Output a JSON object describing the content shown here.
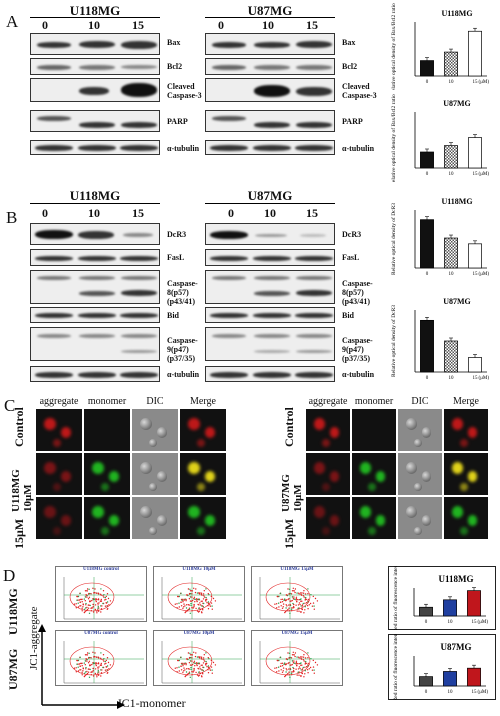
{
  "panelA": {
    "letter": "A",
    "u118_title": "U118MG",
    "u87_title": "U87MG",
    "conc": [
      "0",
      "10",
      "15"
    ],
    "labels": [
      "Bax",
      "Bcl2",
      "Cleaved Caspase-3",
      "PARP",
      "α-tubulin"
    ],
    "chart_u118_title": "U118MG",
    "chart_u87_title": "U87MG",
    "chart_ylabel": "Relative optical density of Bax/Bcl2 ratio",
    "unit": "(μM)"
  },
  "panelB": {
    "letter": "B",
    "u118_title": "U118MG",
    "u87_title": "U87MG",
    "conc": [
      "0",
      "10",
      "15"
    ],
    "labels": [
      "DcR3",
      "FasL",
      "Caspase-8(p57) (p43/41)",
      "Bid",
      "Caspase-9(p47) (p37/35)",
      "α-tubulin"
    ],
    "chart_u118_title": "U118MG",
    "chart_u87_title": "U87MG",
    "chart_ylabel": "Relative optical density of DcR3",
    "unit": "(μM)"
  },
  "panelC": {
    "letter": "C",
    "headers": [
      "aggregate",
      "monomer",
      "DIC",
      "Merge"
    ],
    "rows_left": [
      "Control",
      "U118MG 10μM",
      "15μM"
    ],
    "rows_right": [
      "Control",
      "U87MG 10μM",
      "15μM"
    ]
  },
  "panelD": {
    "letter": "D",
    "row_labels": [
      "U118MG",
      "U87MG"
    ],
    "y_axis_label": "JC1-aggregate",
    "x_axis_label": "JC1-monomer",
    "flow_titles": [
      "U118MG control",
      "U118MG 10μM",
      "U118MG 15μM",
      "U87MG control",
      "U87MG 10μM",
      "U87MG 15μM"
    ],
    "chart_u118_title": "U118MG",
    "chart_u87_title": "U87MG",
    "chart_ylabel": "Green/Red ratio of fluorescence intensity",
    "unit": "(μM)"
  },
  "colors": {
    "red_fluor": "#e0201c",
    "green_fluor": "#22c522",
    "bar_blue": "#1f3fa0",
    "bar_red": "#c0161c"
  },
  "chart_data": [
    {
      "type": "bar",
      "title": "U118MG",
      "categories": [
        "0",
        "10",
        "15"
      ],
      "values": [
        1.0,
        1.55,
        2.9
      ],
      "ylabel": "Relative optical density of Bax/Bcl2 ratio",
      "ylim": [
        0,
        3.5
      ]
    },
    {
      "type": "bar",
      "title": "U87MG",
      "categories": [
        "0",
        "10",
        "15"
      ],
      "values": [
        1.0,
        1.4,
        1.9
      ],
      "ylabel": "Relative optical density of Bax/Bcl2 ratio",
      "ylim": [
        0,
        3.5
      ]
    },
    {
      "type": "bar",
      "title": "U118MG",
      "categories": [
        "0",
        "10",
        "15"
      ],
      "values": [
        1.0,
        0.62,
        0.5
      ],
      "ylabel": "Relative optical density of DcR3",
      "ylim": [
        0,
        1.2
      ]
    },
    {
      "type": "bar",
      "title": "U87MG",
      "categories": [
        "0",
        "10",
        "15"
      ],
      "values": [
        1.0,
        0.6,
        0.28
      ],
      "ylabel": "Relative optical density of DcR3",
      "ylim": [
        0,
        1.2
      ]
    },
    {
      "type": "bar",
      "title": "U118MG",
      "categories": [
        "0",
        "10",
        "15"
      ],
      "values": [
        1.0,
        1.85,
        2.9
      ],
      "ylabel": "Green/Red ratio of fluorescence intensity",
      "ylim": [
        0,
        3.2
      ]
    },
    {
      "type": "bar",
      "title": "U87MG",
      "categories": [
        "0",
        "10",
        "15"
      ],
      "values": [
        1.0,
        1.55,
        1.9
      ],
      "ylabel": "Green/Red ratio of fluorescence intensity",
      "ylim": [
        0,
        3.2
      ]
    }
  ]
}
